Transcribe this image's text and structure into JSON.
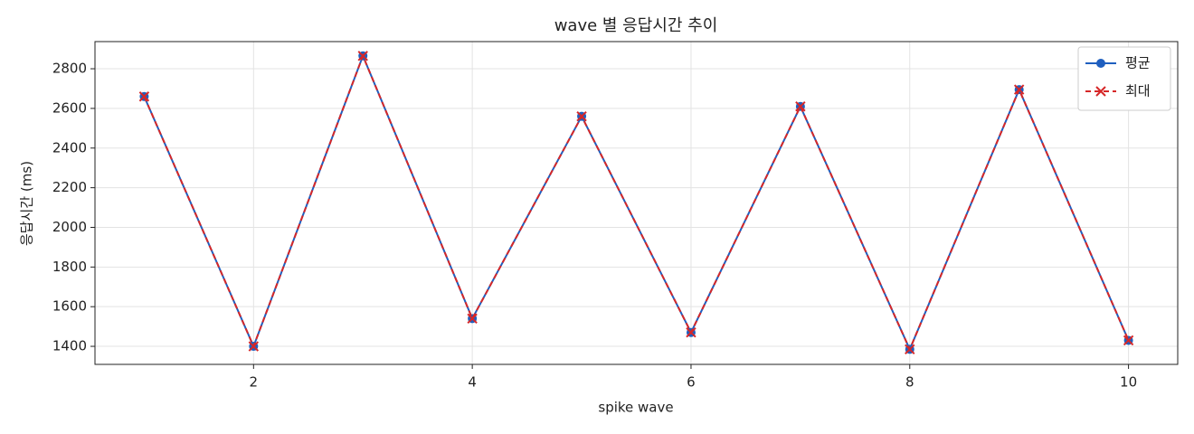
{
  "chart_data": {
    "type": "line",
    "title": "wave 별 응답시간 추이",
    "x_label": "spike wave",
    "y_label": "응답시간 (ms)",
    "x": [
      1,
      2,
      3,
      4,
      5,
      6,
      7,
      8,
      9,
      10
    ],
    "series": [
      {
        "name": "평균",
        "color": "#1f5fbf",
        "marker": "circle",
        "dash": false,
        "values": [
          2660,
          1400,
          2865,
          1540,
          2560,
          1470,
          2610,
          1385,
          2695,
          1430
        ]
      },
      {
        "name": "최대",
        "color": "#d62728",
        "marker": "x",
        "dash": true,
        "values": [
          2660,
          1400,
          2865,
          1540,
          2560,
          1470,
          2610,
          1385,
          2695,
          1430
        ]
      }
    ],
    "xlim": [
      0.55,
      10.45
    ],
    "ylim": [
      1309,
      2937
    ],
    "xticks": [
      2,
      4,
      6,
      8,
      10
    ],
    "yticks": [
      1400,
      1600,
      1800,
      2000,
      2200,
      2400,
      2600,
      2800
    ],
    "grid": true,
    "legend": "upper right"
  }
}
